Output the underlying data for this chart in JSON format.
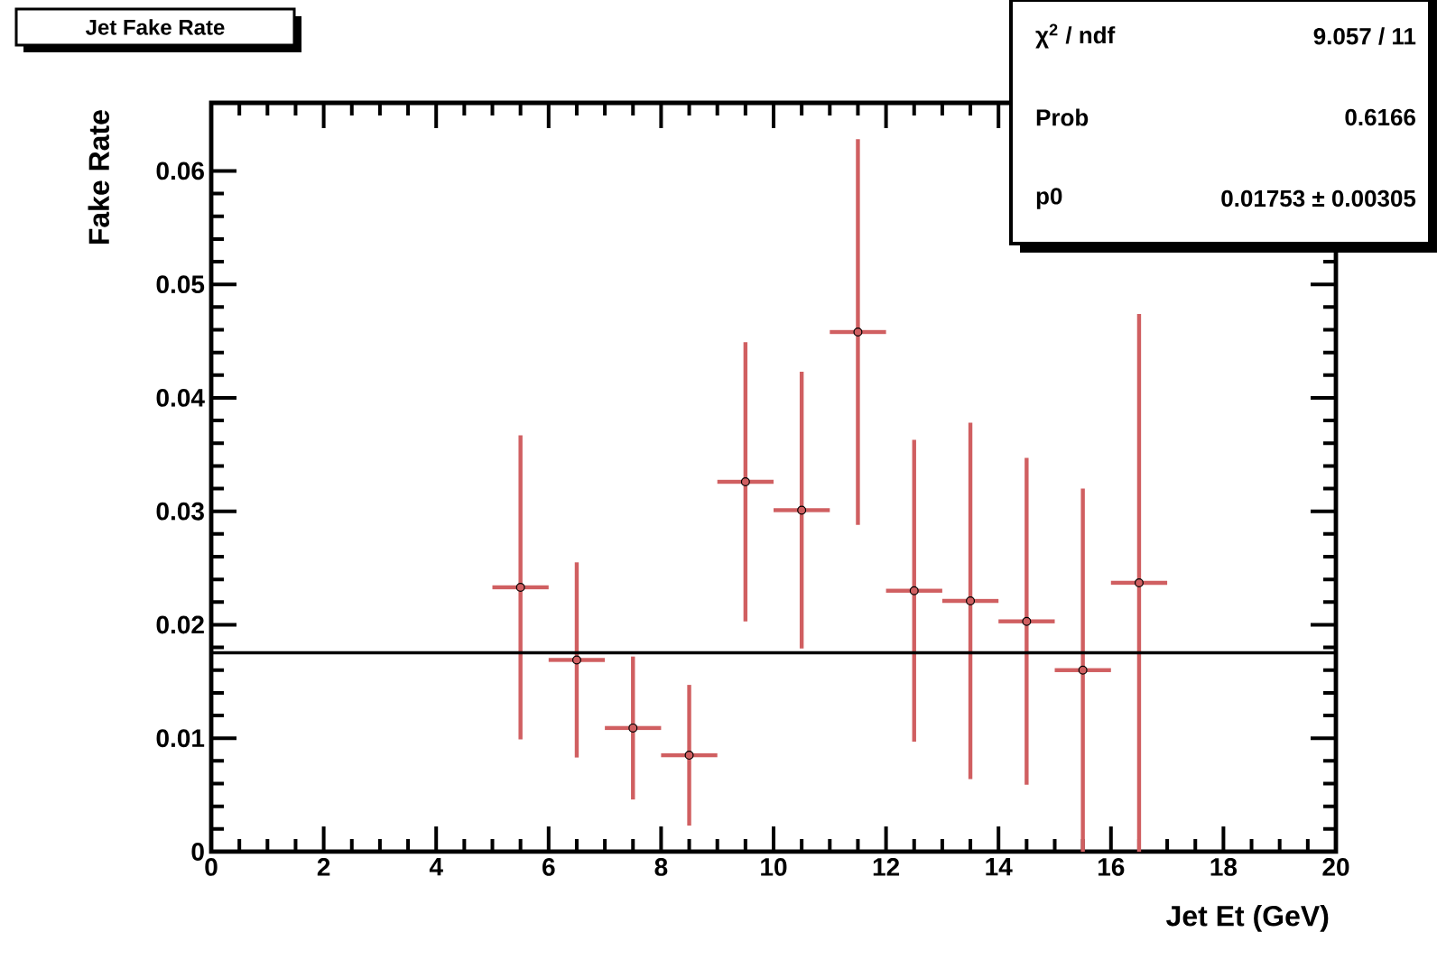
{
  "chart_data": {
    "type": "scatter",
    "title": "Jet Fake Rate",
    "xlabel": "Jet Et (GeV)",
    "ylabel": "Fake Rate",
    "x": [
      5.5,
      6.5,
      7.5,
      8.5,
      9.5,
      10.5,
      11.5,
      12.5,
      13.5,
      14.5,
      15.5,
      16.5
    ],
    "values": [
      0.0233,
      0.0169,
      0.0109,
      0.0085,
      0.0326,
      0.0301,
      0.0458,
      0.023,
      0.0221,
      0.0203,
      0.016,
      0.0237
    ],
    "errors": [
      0.0134,
      0.0086,
      0.0063,
      0.0062,
      0.0123,
      0.0122,
      0.017,
      0.0133,
      0.0157,
      0.0144,
      [
        0,
        0.032
      ],
      [
        0,
        0.0474
      ]
    ],
    "xerrors": [
      0.5,
      0.5,
      0.5,
      0.5,
      0.5,
      0.5,
      0.5,
      0.5,
      0.5,
      0.5,
      0.5,
      0.5
    ],
    "color": "#d05f61",
    "marker": "circle",
    "xlim": [
      0,
      20
    ],
    "ylim": [
      0,
      0.066
    ],
    "xticks": [
      0,
      2,
      4,
      6,
      8,
      10,
      12,
      14,
      16,
      18,
      20
    ],
    "yticks": [
      0,
      0.01,
      0.02,
      0.03,
      0.04,
      0.05,
      0.06
    ],
    "ref_lines": [
      {
        "axis": "y",
        "value": 0.01753,
        "color": "#000000"
      }
    ],
    "annotations": [
      "χ$^{2}$ / ndf",
      "9.057 / 11",
      "Prob",
      "0.6166",
      "p0",
      "0.01753 ± 0.00305"
    ]
  }
}
